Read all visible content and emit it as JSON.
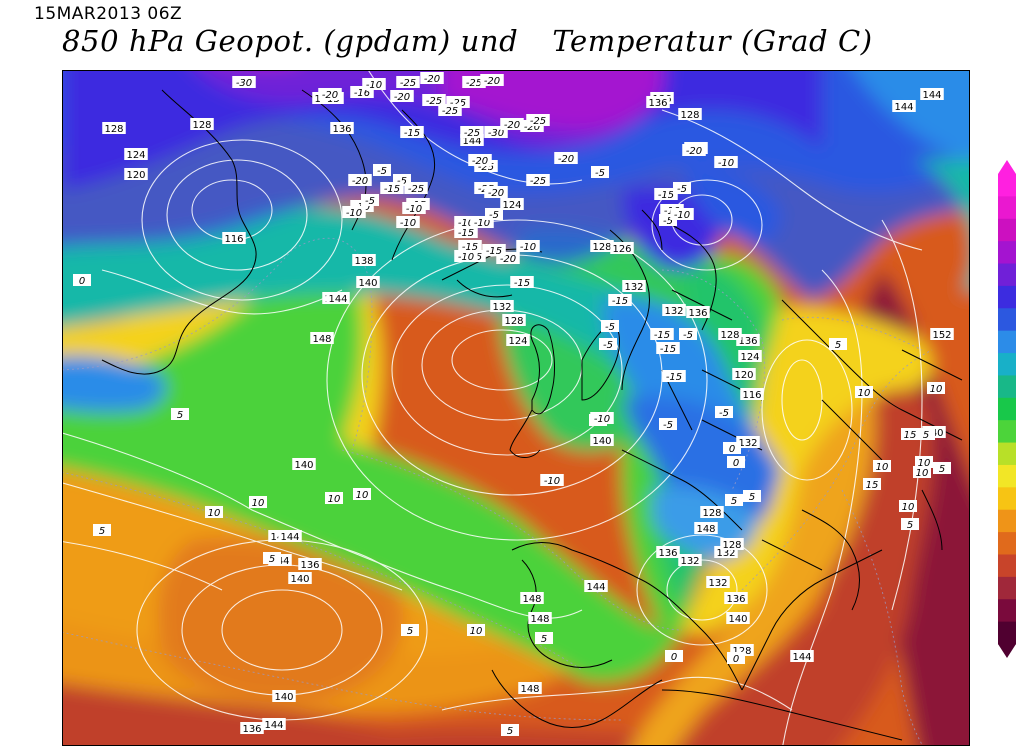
{
  "header": {
    "datetime": "15MAR2013 06Z",
    "title_left": "850 hPa Geopot. (gpdam) und",
    "title_right": "Temperatur (Grad C)"
  },
  "temperature_palette": [
    "#500030",
    "#7a0a3c",
    "#a0283a",
    "#c8442a",
    "#e06a1c",
    "#ef9418",
    "#f7c414",
    "#f2e626",
    "#b8e028",
    "#4cd43a",
    "#18c84a",
    "#18b888",
    "#18b0c8",
    "#2c8ce8",
    "#2c58e0",
    "#3c2ce0",
    "#7020d8",
    "#a414d0",
    "#cc10c0",
    "#ea18d0",
    "#ff20e0"
  ],
  "labels_geopotential": [
    {
      "t": "140",
      "c": "gh"
    },
    {
      "t": "136",
      "c": "gh"
    },
    {
      "t": "144",
      "c": "gh"
    },
    {
      "t": "124",
      "c": "gh"
    },
    {
      "t": "120",
      "c": "gh"
    },
    {
      "t": "116",
      "c": "gh"
    },
    {
      "t": "128",
      "c": "gh"
    },
    {
      "t": "144",
      "c": "gh"
    },
    {
      "t": "136",
      "c": "gh"
    },
    {
      "t": "136",
      "c": "gh"
    },
    {
      "t": "128",
      "c": "gh"
    },
    {
      "t": "144",
      "c": "gh"
    },
    {
      "t": "128",
      "c": "gh"
    },
    {
      "t": "124",
      "c": "gh"
    },
    {
      "t": "144",
      "c": "gh"
    },
    {
      "t": "128",
      "c": "gh"
    },
    {
      "t": "126",
      "c": "gh"
    },
    {
      "t": "132",
      "c": "gh"
    },
    {
      "t": "138",
      "c": "gh"
    },
    {
      "t": "140",
      "c": "gh"
    },
    {
      "t": "144",
      "c": "gh"
    },
    {
      "t": "148",
      "c": "gh"
    },
    {
      "t": "132",
      "c": "gh"
    },
    {
      "t": "128",
      "c": "gh"
    },
    {
      "t": "124",
      "c": "gh"
    },
    {
      "t": "136",
      "c": "gh"
    },
    {
      "t": "132",
      "c": "gh"
    },
    {
      "t": "136",
      "c": "gh"
    },
    {
      "t": "128",
      "c": "gh"
    },
    {
      "t": "124",
      "c": "gh"
    },
    {
      "t": "120",
      "c": "gh"
    },
    {
      "t": "116",
      "c": "gh"
    },
    {
      "t": "132",
      "c": "gh"
    },
    {
      "t": "128",
      "c": "gh"
    },
    {
      "t": "136",
      "c": "gh"
    },
    {
      "t": "132",
      "c": "gh"
    },
    {
      "t": "148",
      "c": "gh"
    },
    {
      "t": "152",
      "c": "gh"
    },
    {
      "t": "140",
      "c": "gh"
    },
    {
      "t": "140",
      "c": "gh"
    },
    {
      "t": "140",
      "c": "gh"
    },
    {
      "t": "144",
      "c": "gh"
    },
    {
      "t": "144",
      "c": "gh"
    },
    {
      "t": "140",
      "c": "gh"
    },
    {
      "t": "136",
      "c": "gh"
    },
    {
      "t": "148",
      "c": "gh"
    },
    {
      "t": "148",
      "c": "gh"
    },
    {
      "t": "144",
      "c": "gh"
    },
    {
      "t": "132",
      "c": "gh"
    },
    {
      "t": "128",
      "c": "gh"
    },
    {
      "t": "132",
      "c": "gh"
    },
    {
      "t": "136",
      "c": "gh"
    },
    {
      "t": "140",
      "c": "gh"
    },
    {
      "t": "128",
      "c": "gh"
    },
    {
      "t": "144",
      "c": "gh"
    },
    {
      "t": "148",
      "c": "gh"
    },
    {
      "t": "140",
      "c": "gh"
    },
    {
      "t": "144",
      "c": "gh"
    },
    {
      "t": "136",
      "c": "gh"
    },
    {
      "t": "140",
      "c": "gh"
    }
  ],
  "labels_temperature": [
    "-30",
    "-25",
    "-25",
    "-20",
    "-25",
    "-20",
    "-16",
    "-10",
    "-15",
    "-20",
    "-25",
    "-20",
    "-25",
    "-30",
    "-25",
    "-20",
    "-25",
    "-25",
    "-25",
    "-20",
    "-25",
    "-20",
    "-15",
    "-15",
    "-20",
    "-20",
    "-15",
    "-10",
    "-10",
    "-15",
    "-10",
    "-10",
    "-20",
    "-15",
    "-15",
    "-10",
    "-15",
    "-25",
    "-20",
    "-10",
    "-5",
    "-5",
    "-15",
    "-5",
    "-10",
    "-10",
    "-5",
    "-5",
    "-10",
    "-20",
    "-10",
    "-15",
    "-10",
    "-5",
    "-5",
    "-10",
    "-15",
    "-5",
    "-5",
    "-5",
    "-15",
    "-10",
    "-5",
    "-10",
    "-15",
    "-15",
    "-5",
    "-5",
    "0",
    "0",
    "5",
    "5",
    "0",
    "5",
    "10",
    "10",
    "5",
    "5",
    "10",
    "10",
    "5",
    "10",
    "5",
    "5",
    "0",
    "0",
    "5",
    "10",
    "15",
    "10",
    "15",
    "10",
    "10",
    "5",
    "5",
    "10",
    "5",
    "10",
    "5",
    "10"
  ],
  "temp_label_values": {
    "neg30": "-30",
    "neg25": "-25",
    "neg20": "-20",
    "neg15": "-15",
    "neg10": "-10",
    "neg5": "-5",
    "zero": "0",
    "pos5": "5",
    "pos10": "10",
    "pos15": "15",
    "neg16": "-16"
  }
}
